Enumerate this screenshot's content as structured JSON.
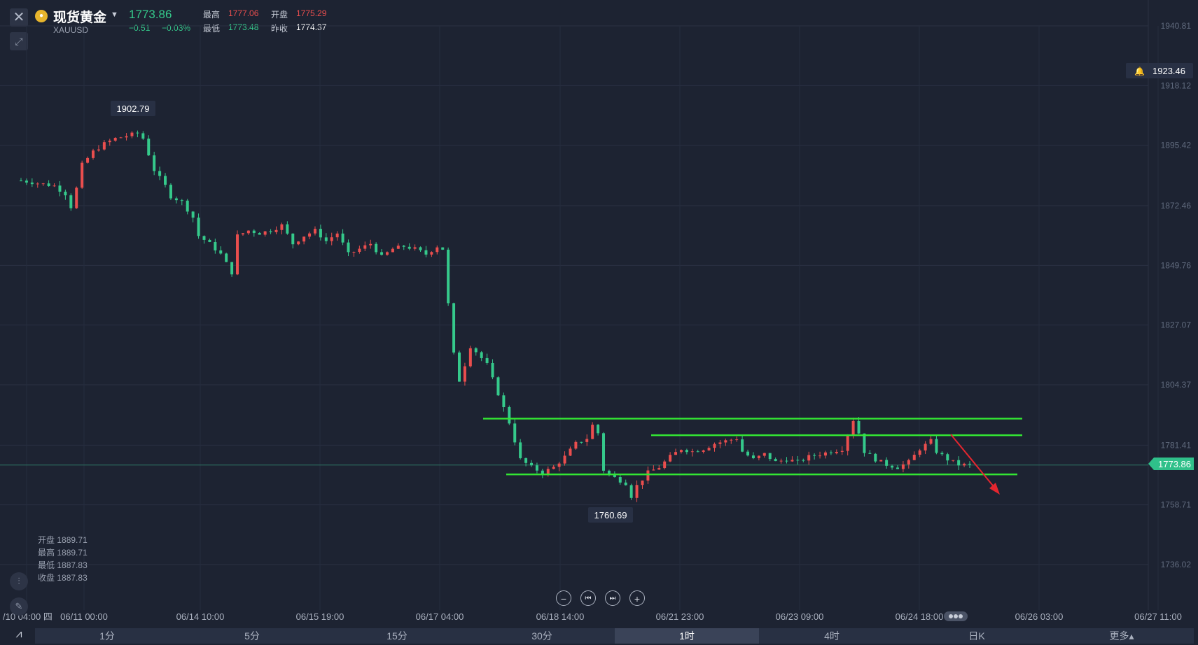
{
  "header": {
    "symbol_name": "现货黄金",
    "symbol_code": "XAUUSD",
    "price": "1773.86",
    "change": "−0.51",
    "change_pct": "−0.03%",
    "stats": {
      "high_label": "最高",
      "high_value": "1777.06",
      "open_label": "开盘",
      "open_value": "1775.29",
      "low_label": "最低",
      "low_value": "1773.48",
      "prev_close_label": "昨收",
      "prev_close_value": "1774.37"
    },
    "colors": {
      "up": "#ea4e4e",
      "down": "#35c98b",
      "price": "#35c98b"
    }
  },
  "chart_data": {
    "type": "candlestick",
    "y_axis_ticks": [
      "1940.81",
      "1918.12",
      "1895.42",
      "1872.46",
      "1849.76",
      "1827.07",
      "1804.37",
      "1781.41",
      "1758.71",
      "1736.02"
    ],
    "ylim": [
      1736.02,
      1940.81
    ],
    "x_axis_ticks": [
      "/10 04:00 四",
      "06/11 00:00",
      "06/14 10:00",
      "06/15 19:00",
      "06/17 04:00",
      "06/18 14:00",
      "06/21 23:00",
      "06/23 09:00",
      "06/24 18:00",
      "06/26 03:00",
      "06/27 11:00"
    ],
    "current_price_tag": "1773.86",
    "alert_price_tag": "1923.46",
    "high_marker": "1902.79",
    "low_marker": "1760.69",
    "close_path": [
      [
        0,
        1882
      ],
      [
        3,
        1881
      ],
      [
        6,
        1880
      ],
      [
        8,
        1877
      ],
      [
        9,
        1872
      ],
      [
        10,
        1879
      ],
      [
        11,
        1888
      ],
      [
        13,
        1893
      ],
      [
        15,
        1896
      ],
      [
        17,
        1898
      ],
      [
        19,
        1899
      ],
      [
        21,
        1900
      ],
      [
        22,
        1898
      ],
      [
        23,
        1892
      ],
      [
        24,
        1886
      ],
      [
        26,
        1880
      ],
      [
        27,
        1876
      ],
      [
        29,
        1874
      ],
      [
        31,
        1868
      ],
      [
        32,
        1861
      ],
      [
        34,
        1858
      ],
      [
        36,
        1854
      ],
      [
        38,
        1847
      ],
      [
        39,
        1861
      ],
      [
        41,
        1863
      ],
      [
        43,
        1862
      ],
      [
        45,
        1863
      ],
      [
        47,
        1865
      ],
      [
        49,
        1858
      ],
      [
        51,
        1861
      ],
      [
        53,
        1863
      ],
      [
        55,
        1859
      ],
      [
        57,
        1862
      ],
      [
        59,
        1854
      ],
      [
        61,
        1856
      ],
      [
        63,
        1858
      ],
      [
        65,
        1853
      ],
      [
        67,
        1856
      ],
      [
        69,
        1857
      ],
      [
        71,
        1856
      ],
      [
        73,
        1854
      ],
      [
        75,
        1857
      ],
      [
        76,
        1856
      ],
      [
        77,
        1835
      ],
      [
        78,
        1816
      ],
      [
        79,
        1806
      ],
      [
        80,
        1812
      ],
      [
        81,
        1819
      ],
      [
        82,
        1817
      ],
      [
        84,
        1812
      ],
      [
        86,
        1801
      ],
      [
        88,
        1790
      ],
      [
        90,
        1776
      ],
      [
        92,
        1773
      ],
      [
        94,
        1771
      ],
      [
        96,
        1773
      ],
      [
        98,
        1777
      ],
      [
        100,
        1782
      ],
      [
        102,
        1784
      ],
      [
        103,
        1789
      ],
      [
        104,
        1786
      ],
      [
        105,
        1772
      ],
      [
        107,
        1769
      ],
      [
        109,
        1767
      ],
      [
        110,
        1762
      ],
      [
        111,
        1766
      ],
      [
        113,
        1771
      ],
      [
        115,
        1773
      ],
      [
        117,
        1777
      ],
      [
        119,
        1780
      ],
      [
        121,
        1779
      ],
      [
        123,
        1780
      ],
      [
        125,
        1782
      ],
      [
        127,
        1783
      ],
      [
        129,
        1784
      ],
      [
        130,
        1779
      ],
      [
        132,
        1776
      ],
      [
        134,
        1778
      ],
      [
        136,
        1775
      ],
      [
        138,
        1776
      ],
      [
        140,
        1775
      ],
      [
        142,
        1777
      ],
      [
        144,
        1778
      ],
      [
        146,
        1779
      ],
      [
        148,
        1780
      ],
      [
        150,
        1791
      ],
      [
        151,
        1786
      ],
      [
        152,
        1779
      ],
      [
        154,
        1776
      ],
      [
        156,
        1774
      ],
      [
        158,
        1773
      ],
      [
        160,
        1775
      ],
      [
        162,
        1780
      ],
      [
        164,
        1783
      ],
      [
        165,
        1779
      ],
      [
        167,
        1776
      ],
      [
        169,
        1774
      ],
      [
        171,
        1773.86
      ]
    ],
    "annotations": [
      {
        "type": "horizontal-line",
        "value": 1791.5,
        "color": "#33e533"
      },
      {
        "type": "horizontal-line",
        "value": 1785.2,
        "color": "#33e533"
      },
      {
        "type": "horizontal-line",
        "value": 1770.3,
        "color": "#33e533"
      },
      {
        "type": "arrow",
        "color": "#e5262f",
        "direction": "down-right"
      }
    ]
  },
  "ohlc_panel": {
    "open_label": "开盘",
    "open_value": "1889.71",
    "high_label": "最高",
    "high_value": "1889.71",
    "low_label": "最低",
    "low_value": "1887.83",
    "close_label": "收盘",
    "close_value": "1887.83"
  },
  "controls": {
    "zoom_out": "−",
    "prev": "⏮",
    "next": "⏭",
    "zoom_in": "+"
  },
  "tabs": [
    {
      "label": "1分",
      "active": false
    },
    {
      "label": "5分",
      "active": false
    },
    {
      "label": "15分",
      "active": false
    },
    {
      "label": "30分",
      "active": false
    },
    {
      "label": "1时",
      "active": true
    },
    {
      "label": "4时",
      "active": false
    },
    {
      "label": "日K",
      "active": false
    },
    {
      "label": "更多▴",
      "active": false
    }
  ]
}
